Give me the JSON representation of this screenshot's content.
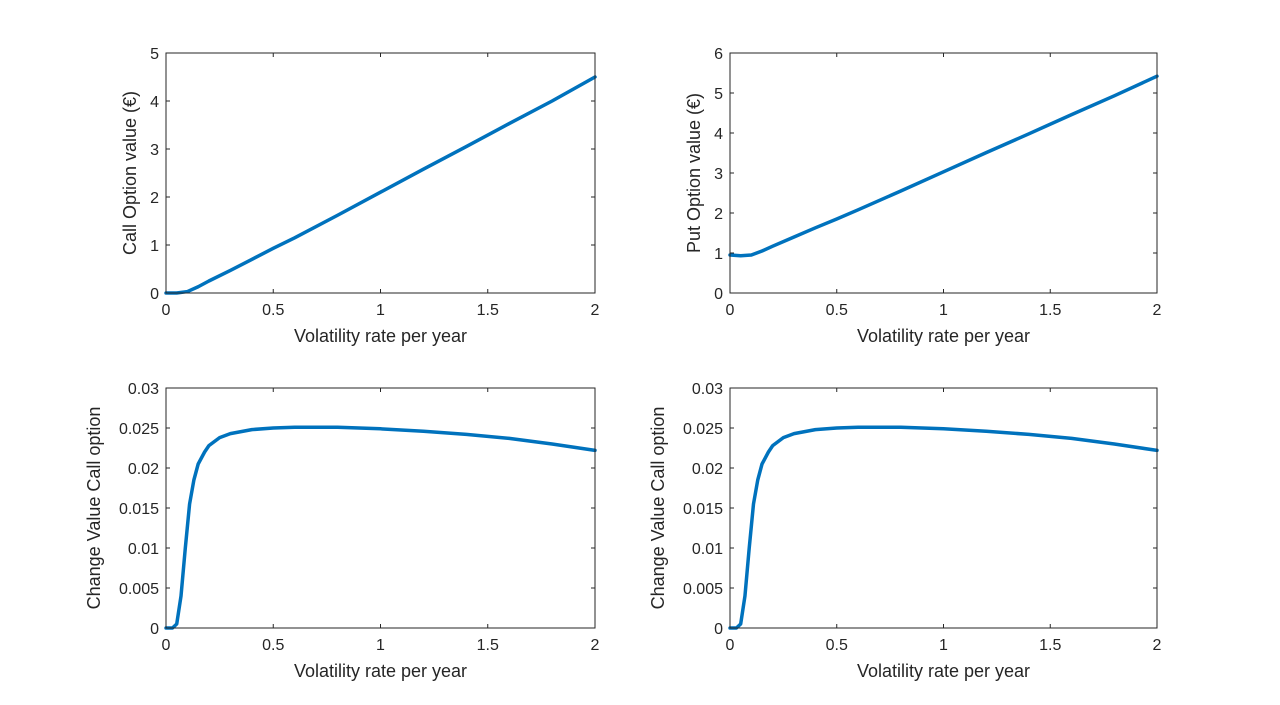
{
  "colors": {
    "series": "#0072BD",
    "axis": "#262626",
    "background": "#ffffff"
  },
  "chart_data": [
    {
      "type": "line",
      "xlabel": "Volatility rate per year",
      "ylabel": "Call Option value (€)",
      "xlim": [
        0,
        2
      ],
      "ylim": [
        0,
        5
      ],
      "xticks": [
        0,
        0.5,
        1,
        1.5,
        2
      ],
      "xtick_labels": [
        "0",
        "0.5",
        "1",
        "1.5",
        "2"
      ],
      "yticks": [
        0,
        1,
        2,
        3,
        4,
        5
      ],
      "ytick_labels": [
        "0",
        "1",
        "2",
        "3",
        "4",
        "5"
      ],
      "grid": false,
      "series": [
        {
          "x": [
            0.0,
            0.05,
            0.1,
            0.15,
            0.2,
            0.3,
            0.4,
            0.5,
            0.6,
            0.8,
            1.0,
            1.2,
            1.4,
            1.6,
            1.8,
            2.0
          ],
          "y": [
            0.0,
            0.0,
            0.03,
            0.13,
            0.25,
            0.47,
            0.7,
            0.93,
            1.15,
            1.62,
            2.1,
            2.58,
            3.05,
            3.53,
            4.0,
            4.5
          ]
        }
      ]
    },
    {
      "type": "line",
      "xlabel": "Volatility rate per year",
      "ylabel": "Put Option value (€)",
      "xlim": [
        0,
        2
      ],
      "ylim": [
        0,
        6
      ],
      "xticks": [
        0,
        0.5,
        1,
        1.5,
        2
      ],
      "xtick_labels": [
        "0",
        "0.5",
        "1",
        "1.5",
        "2"
      ],
      "yticks": [
        0,
        1,
        2,
        3,
        4,
        5,
        6
      ],
      "ytick_labels": [
        "0",
        "1",
        "2",
        "3",
        "4",
        "5",
        "6"
      ],
      "grid": false,
      "series": [
        {
          "x": [
            0.0,
            0.05,
            0.1,
            0.15,
            0.2,
            0.3,
            0.4,
            0.5,
            0.6,
            0.8,
            1.0,
            1.2,
            1.4,
            1.6,
            1.8,
            2.0
          ],
          "y": [
            0.95,
            0.93,
            0.95,
            1.05,
            1.17,
            1.4,
            1.63,
            1.85,
            2.08,
            2.55,
            3.03,
            3.51,
            3.98,
            4.46,
            4.93,
            5.42
          ]
        }
      ]
    },
    {
      "type": "line",
      "xlabel": "Volatility rate per year",
      "ylabel": "Change Value Call option",
      "xlim": [
        0,
        2
      ],
      "ylim": [
        0,
        0.03
      ],
      "xticks": [
        0,
        0.5,
        1,
        1.5,
        2
      ],
      "xtick_labels": [
        "0",
        "0.5",
        "1",
        "1.5",
        "2"
      ],
      "yticks": [
        0,
        0.005,
        0.01,
        0.015,
        0.02,
        0.025,
        0.03
      ],
      "ytick_labels": [
        "0",
        "0.005",
        "0.01",
        "0.015",
        "0.02",
        "0.025",
        "0.03"
      ],
      "grid": false,
      "series": [
        {
          "x": [
            0.0,
            0.03,
            0.05,
            0.07,
            0.09,
            0.11,
            0.13,
            0.15,
            0.18,
            0.2,
            0.25,
            0.3,
            0.4,
            0.5,
            0.6,
            0.7,
            0.8,
            1.0,
            1.2,
            1.4,
            1.6,
            1.8,
            2.0
          ],
          "y": [
            0.0,
            0.0,
            0.0005,
            0.004,
            0.01,
            0.0155,
            0.0185,
            0.0205,
            0.022,
            0.0228,
            0.0238,
            0.0243,
            0.0248,
            0.025,
            0.0251,
            0.0251,
            0.0251,
            0.0249,
            0.0246,
            0.0242,
            0.0237,
            0.023,
            0.0222
          ]
        }
      ]
    },
    {
      "type": "line",
      "xlabel": "Volatility rate per year",
      "ylabel": "Change Value Call option",
      "xlim": [
        0,
        2
      ],
      "ylim": [
        0,
        0.03
      ],
      "xticks": [
        0,
        0.5,
        1,
        1.5,
        2
      ],
      "xtick_labels": [
        "0",
        "0.5",
        "1",
        "1.5",
        "2"
      ],
      "yticks": [
        0,
        0.005,
        0.01,
        0.015,
        0.02,
        0.025,
        0.03
      ],
      "ytick_labels": [
        "0",
        "0.005",
        "0.01",
        "0.015",
        "0.02",
        "0.025",
        "0.03"
      ],
      "grid": false,
      "series": [
        {
          "x": [
            0.0,
            0.03,
            0.05,
            0.07,
            0.09,
            0.11,
            0.13,
            0.15,
            0.18,
            0.2,
            0.25,
            0.3,
            0.4,
            0.5,
            0.6,
            0.7,
            0.8,
            1.0,
            1.2,
            1.4,
            1.6,
            1.8,
            2.0
          ],
          "y": [
            0.0,
            0.0,
            0.0005,
            0.004,
            0.01,
            0.0155,
            0.0185,
            0.0205,
            0.022,
            0.0228,
            0.0238,
            0.0243,
            0.0248,
            0.025,
            0.0251,
            0.0251,
            0.0251,
            0.0249,
            0.0246,
            0.0242,
            0.0237,
            0.023,
            0.0222
          ]
        }
      ]
    }
  ]
}
